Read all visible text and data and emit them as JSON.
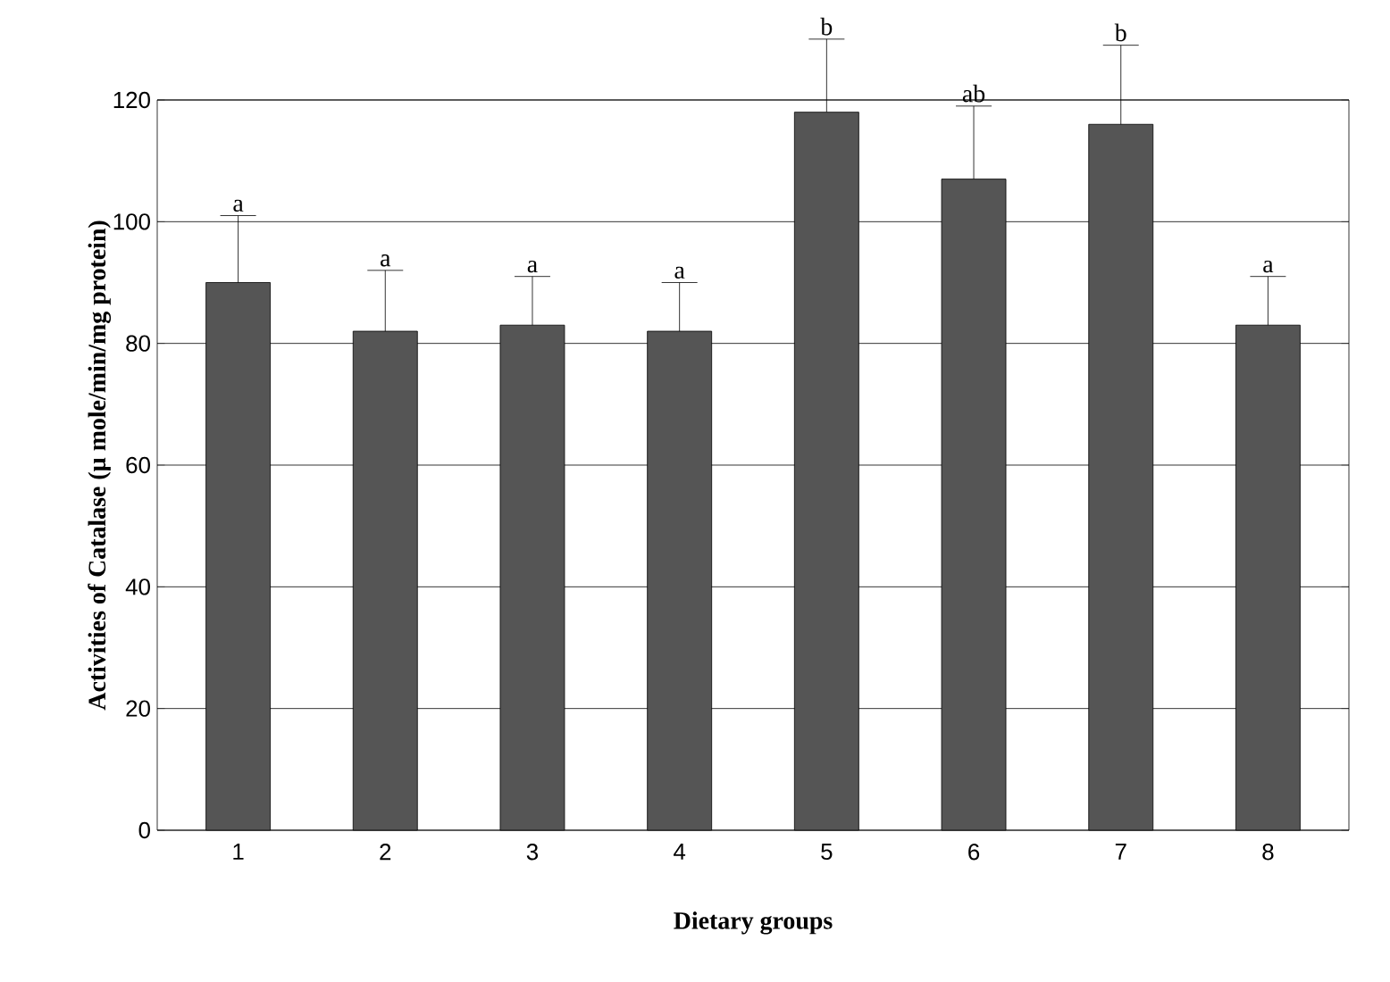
{
  "chart_data": {
    "type": "bar",
    "xlabel": "Dietary groups",
    "ylabel": "Activities of Catalase (µ mole/min/mg protein)",
    "categories": [
      "1",
      "2",
      "3",
      "4",
      "5",
      "6",
      "7",
      "8"
    ],
    "values": [
      90,
      82,
      83,
      82,
      118,
      107,
      116,
      83
    ],
    "errors": [
      11,
      10,
      8,
      8,
      12,
      12,
      13,
      8
    ],
    "color": "#555555",
    "ylim": [
      0,
      120
    ],
    "yticks": [
      0,
      20,
      40,
      60,
      80,
      100,
      120
    ],
    "grid": "y",
    "annotations": [
      {
        "text": "a",
        "x": "1",
        "y": 101
      },
      {
        "text": "a",
        "x": "2",
        "y": 92
      },
      {
        "text": "a",
        "x": "3",
        "y": 91
      },
      {
        "text": "a",
        "x": "4",
        "y": 90
      },
      {
        "text": "b",
        "x": "5",
        "y": 130
      },
      {
        "text": "ab",
        "x": "6",
        "y": 119
      },
      {
        "text": "b",
        "x": "7",
        "y": 129
      },
      {
        "text": "a",
        "x": "8",
        "y": 91
      }
    ]
  }
}
